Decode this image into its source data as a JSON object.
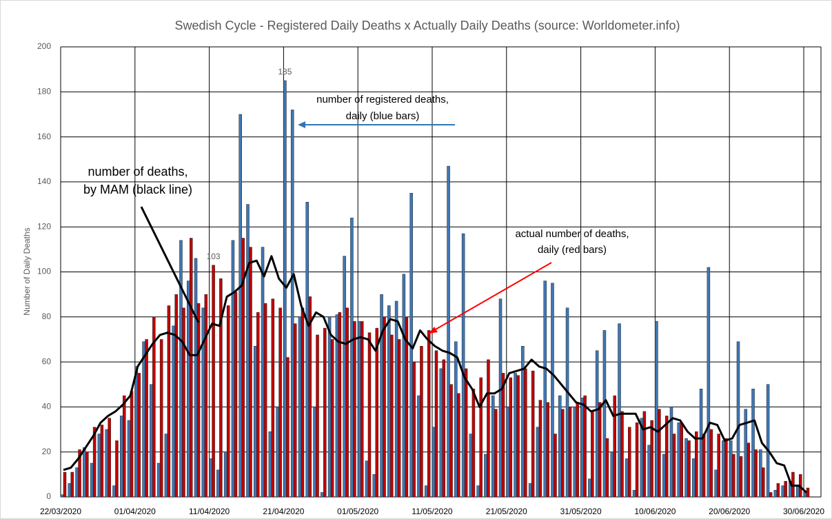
{
  "chart_data": {
    "type": "bar_line",
    "title": "Swedish Cycle - Registered Daily Deaths x Actually Daily Deaths (source: Worldometer.info)",
    "y_label": "Number of Daily Deaths",
    "categories": [
      "22/03/2020",
      null,
      null,
      null,
      null,
      null,
      null,
      null,
      null,
      null,
      "01/04/2020",
      null,
      null,
      null,
      null,
      null,
      null,
      null,
      null,
      null,
      "11/04/2020",
      null,
      null,
      null,
      null,
      null,
      null,
      null,
      null,
      null,
      "21/04/2020",
      null,
      null,
      null,
      null,
      null,
      null,
      null,
      null,
      null,
      "01/05/2020",
      null,
      null,
      null,
      null,
      null,
      null,
      null,
      null,
      null,
      "11/05/2020",
      null,
      null,
      null,
      null,
      null,
      null,
      null,
      null,
      null,
      "21/05/2020",
      null,
      null,
      null,
      null,
      null,
      null,
      null,
      null,
      null,
      "31/05/2020",
      null,
      null,
      null,
      null,
      null,
      null,
      null,
      null,
      null,
      "10/06/2020",
      null,
      null,
      null,
      null,
      null,
      null,
      null,
      null,
      null,
      "20/06/2020",
      null,
      null,
      null,
      null,
      null,
      null,
      null,
      null,
      null,
      "30/06/2020"
    ],
    "series": [
      {
        "kind": "bar",
        "color": "#3f77b4",
        "values": [
          1,
          6,
          13,
          22,
          15,
          28,
          30,
          5,
          36,
          34,
          58,
          69,
          50,
          15,
          28,
          76,
          114,
          96,
          106,
          84,
          17,
          12,
          20,
          114,
          170,
          130,
          67,
          111,
          29,
          40,
          185,
          172,
          80,
          131,
          40,
          2,
          80,
          81,
          107,
          124,
          78,
          16,
          10,
          90,
          85,
          87,
          99,
          135,
          45,
          5,
          31,
          57,
          147,
          69,
          117,
          28,
          5,
          19,
          45,
          88,
          40,
          55,
          67,
          6,
          31,
          96,
          95,
          45,
          84,
          40,
          44,
          8,
          65,
          74,
          20,
          77,
          17,
          3,
          35,
          23,
          78,
          19,
          40,
          33,
          26,
          17,
          48,
          102,
          12,
          25,
          25,
          69,
          39,
          48,
          21,
          50,
          3,
          5,
          7,
          5,
          2
        ],
        "value_labels": [
          null,
          null,
          null,
          null,
          null,
          null,
          null,
          null,
          null,
          null,
          null,
          null,
          null,
          null,
          null,
          null,
          null,
          null,
          null,
          null,
          null,
          null,
          null,
          null,
          null,
          null,
          null,
          null,
          null,
          null,
          "185",
          null,
          null,
          null,
          null,
          null,
          null,
          null,
          null,
          null,
          null,
          null,
          null,
          null,
          null,
          null,
          null,
          null,
          null,
          null,
          null,
          null,
          null,
          null,
          null,
          null,
          null,
          null,
          null,
          null,
          null,
          null,
          null,
          null,
          null,
          null,
          null,
          null,
          null,
          null,
          null,
          null,
          null,
          null,
          null,
          null,
          null,
          null,
          null,
          null,
          null,
          null,
          null,
          null,
          null,
          null,
          null,
          null,
          null,
          null,
          null,
          null,
          null,
          null,
          null,
          null,
          null,
          null,
          null,
          null,
          null
        ]
      },
      {
        "kind": "bar",
        "color": "#c00000",
        "values": [
          11,
          11,
          21,
          20,
          31,
          32,
          35,
          25,
          45,
          47,
          55,
          70,
          80,
          70,
          85,
          90,
          84,
          115,
          86,
          90,
          103,
          97,
          85,
          91,
          115,
          111,
          82,
          86,
          88,
          84,
          62,
          77,
          84,
          89,
          72,
          75,
          70,
          82,
          84,
          78,
          78,
          73,
          75,
          80,
          72,
          70,
          80,
          60,
          67,
          74,
          65,
          61,
          50,
          46,
          57,
          48,
          53,
          61,
          39,
          55,
          53,
          54,
          57,
          56,
          43,
          42,
          28,
          39,
          40,
          42,
          45,
          38,
          42,
          26,
          45,
          38,
          31,
          33,
          38,
          34,
          39,
          36,
          28,
          33,
          25,
          29,
          28,
          30,
          28,
          26,
          19,
          18,
          24,
          21,
          13,
          2,
          6,
          7,
          11,
          10,
          4
        ],
        "value_labels": [
          null,
          null,
          null,
          null,
          null,
          null,
          null,
          null,
          null,
          null,
          null,
          null,
          null,
          null,
          null,
          null,
          null,
          null,
          null,
          null,
          "103",
          null,
          null,
          null,
          null,
          null,
          null,
          null,
          null,
          null,
          null,
          null,
          null,
          null,
          null,
          null,
          null,
          null,
          null,
          null,
          null,
          null,
          null,
          null,
          null,
          null,
          null,
          null,
          null,
          null,
          null,
          null,
          null,
          null,
          null,
          null,
          null,
          null,
          null,
          null,
          null,
          null,
          null,
          null,
          null,
          null,
          null,
          null,
          null,
          null,
          null,
          null,
          null,
          null,
          null,
          null,
          null,
          null,
          null,
          null,
          null,
          null,
          null,
          null,
          null,
          null,
          null,
          null,
          null,
          null,
          null,
          null,
          null,
          null,
          null,
          null,
          null,
          null,
          null,
          null,
          null
        ]
      },
      {
        "kind": "line",
        "color": "#000000",
        "values": [
          12,
          13,
          17,
          22,
          27,
          33,
          36,
          38,
          41,
          45,
          58,
          63,
          68,
          72,
          73,
          72,
          69,
          63,
          63,
          70,
          77,
          76,
          89,
          91,
          94,
          104,
          105,
          98,
          107,
          97,
          93,
          99,
          85,
          76,
          82,
          80,
          72,
          69,
          68,
          70,
          71,
          70,
          65,
          74,
          79,
          78,
          70,
          66,
          74,
          70,
          67,
          65,
          64,
          62,
          53,
          48,
          40,
          46,
          46,
          48,
          55,
          56,
          57,
          61,
          58,
          57,
          54,
          50,
          46,
          42,
          41,
          38,
          39,
          43,
          36,
          37,
          37,
          37,
          30,
          31,
          29,
          32,
          35,
          34,
          29,
          26,
          26,
          33,
          32,
          25,
          26,
          32,
          33,
          34,
          24,
          20,
          15,
          14,
          5,
          5,
          2
        ]
      }
    ],
    "ylim": [
      0,
      200
    ],
    "yticks": [
      0,
      20,
      40,
      60,
      80,
      100,
      120,
      140,
      160,
      180,
      200
    ],
    "grid": true,
    "annotations": [
      {
        "lines": [
          "number of registered deaths,",
          "daily (blue bars)"
        ]
      },
      {
        "lines": [
          "number of deaths,",
          "by MAM (black line)"
        ]
      },
      {
        "lines": [
          "actual number of deaths,",
          "daily (red bars)"
        ]
      }
    ]
  }
}
